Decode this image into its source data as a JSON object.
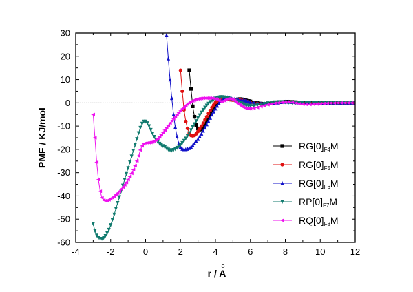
{
  "chart_data": {
    "type": "line",
    "title": "",
    "xlabel": "r / Å",
    "xlabel_base": "r / A",
    "xlabel_ring": "o",
    "ylabel": "PMF / KJ/mol",
    "xlim": [
      -4,
      12
    ],
    "ylim": [
      -60,
      30
    ],
    "xticks": [
      -4,
      -2,
      0,
      2,
      4,
      6,
      8,
      10,
      12
    ],
    "yticks": [
      -60,
      -50,
      -40,
      -30,
      -20,
      -10,
      0,
      10,
      20,
      30
    ],
    "reference_line_y": 0,
    "legend_position": "right",
    "series": [
      {
        "name": "RG[0]F4M",
        "label_base": "RG[0]",
        "label_sub": "F4",
        "label_suffix": "M",
        "color": "#000000",
        "marker": "square",
        "x": [
          2.5,
          2.6,
          2.7,
          2.8,
          2.9,
          3.0,
          3.1,
          3.2,
          3.3,
          3.4,
          3.5,
          3.6,
          3.7,
          3.8,
          3.9,
          4.0,
          4.1,
          4.2,
          4.3,
          4.4,
          4.5,
          4.6,
          4.7,
          4.8,
          4.9,
          5.0,
          5.1,
          5.2,
          5.3,
          5.4,
          5.5,
          5.6,
          5.7,
          5.8,
          5.9,
          6.0,
          6.2,
          6.4,
          6.6,
          6.8,
          7.0,
          7.2,
          7.4,
          7.6,
          7.8,
          8.0,
          8.2,
          8.4,
          8.6,
          8.8,
          9.0,
          9.2,
          9.4,
          9.6,
          9.8,
          10.0,
          10.2,
          10.4,
          10.6,
          10.8,
          11.0,
          11.2,
          11.4,
          11.6,
          11.8,
          12.0
        ],
        "y": [
          14,
          6,
          -1.5,
          -6,
          -9.5,
          -11,
          -11.5,
          -11.3,
          -10.5,
          -9.2,
          -7.8,
          -6.3,
          -4.8,
          -3.4,
          -2,
          -0.8,
          0.1,
          0.9,
          1.4,
          1.8,
          2.0,
          2.0,
          1.8,
          1.6,
          1.4,
          1.3,
          1.3,
          1.4,
          1.5,
          1.6,
          1.5,
          1.4,
          1.2,
          1.0,
          0.8,
          0.6,
          0.2,
          -0.1,
          -0.3,
          -0.4,
          -0.4,
          -0.3,
          -0.1,
          0.1,
          0.3,
          0.5,
          0.5,
          0.4,
          0.3,
          0.2,
          0.1,
          0.05,
          0,
          0,
          0,
          0,
          0,
          0,
          0,
          0,
          0,
          0,
          0,
          0,
          0,
          0
        ]
      },
      {
        "name": "RG[0]F5M",
        "label_base": "RG[0]",
        "label_sub": "F5",
        "label_suffix": "M",
        "color": "#e01010",
        "marker": "circle",
        "x": [
          2.0,
          2.1,
          2.2,
          2.3,
          2.4,
          2.5,
          2.6,
          2.7,
          2.8,
          2.9,
          3.0,
          3.1,
          3.2,
          3.3,
          3.4,
          3.5,
          3.6,
          3.7,
          3.8,
          3.9,
          4.0,
          4.1,
          4.2,
          4.3,
          4.4,
          4.5,
          4.6,
          4.7,
          4.8,
          4.9,
          5.0,
          5.1,
          5.2,
          5.3,
          5.4,
          5.5,
          5.6,
          5.7,
          5.8,
          5.9,
          6.0,
          6.2,
          6.4,
          6.6,
          6.8,
          7.0,
          7.2,
          7.4,
          7.6,
          7.8,
          8.0,
          8.2,
          8.4,
          8.6,
          8.8,
          9.0,
          9.2,
          9.4,
          9.6,
          9.8,
          10.0,
          10.2,
          10.4,
          10.6,
          10.8,
          11.0,
          11.2,
          11.4,
          11.6,
          11.8,
          12.0
        ],
        "y": [
          14,
          5,
          -3,
          -8,
          -11,
          -13,
          -14,
          -14.2,
          -14,
          -13.3,
          -12.3,
          -11.2,
          -10,
          -8.7,
          -7.3,
          -6,
          -4.6,
          -3.3,
          -2,
          -0.9,
          0.1,
          0.8,
          1.3,
          1.7,
          1.9,
          2.0,
          1.9,
          1.7,
          1.5,
          1.3,
          1.2,
          1.2,
          1.2,
          1.2,
          1.2,
          1.1,
          1.0,
          0.8,
          0.6,
          0.4,
          0.2,
          -0.1,
          -0.3,
          -0.4,
          -0.4,
          -0.3,
          -0.2,
          0,
          0.2,
          0.3,
          0.4,
          0.4,
          0.3,
          0.2,
          0.1,
          0.05,
          0,
          0,
          0,
          0,
          0,
          0,
          0,
          0,
          0,
          0,
          0,
          0,
          0,
          0,
          0
        ]
      },
      {
        "name": "RG[0]F6M",
        "label_base": "RG[0]",
        "label_sub": "F6",
        "label_suffix": "M",
        "color": "#1010c8",
        "marker": "triangle-up",
        "x": [
          1.2,
          1.3,
          1.4,
          1.5,
          1.6,
          1.7,
          1.8,
          1.9,
          2.0,
          2.1,
          2.2,
          2.3,
          2.4,
          2.5,
          2.6,
          2.7,
          2.8,
          2.9,
          3.0,
          3.1,
          3.2,
          3.3,
          3.4,
          3.5,
          3.6,
          3.7,
          3.8,
          3.9,
          4.0,
          4.1,
          4.2,
          4.3,
          4.4,
          4.5,
          4.6,
          4.7,
          4.8,
          4.9,
          5.0,
          5.1,
          5.2,
          5.3,
          5.4,
          5.5,
          5.6,
          5.7,
          5.8,
          5.9,
          6.0,
          6.2,
          6.4,
          6.6,
          6.8,
          7.0,
          7.2,
          7.4,
          7.6,
          7.8,
          8.0,
          8.2,
          8.4,
          8.6,
          8.8,
          9.0,
          9.2,
          9.4,
          9.6,
          9.8,
          10.0,
          10.2,
          10.4,
          10.6,
          10.8,
          11.0,
          11.2,
          11.4,
          11.6,
          11.8,
          12.0
        ],
        "y": [
          29,
          19,
          10,
          2,
          -5,
          -10.5,
          -14.5,
          -17.5,
          -19,
          -19.8,
          -20,
          -20,
          -19.8,
          -19.5,
          -19,
          -18.3,
          -17.5,
          -16.6,
          -15.6,
          -14.5,
          -13.3,
          -12,
          -10.7,
          -9.3,
          -7.9,
          -6.5,
          -5.1,
          -3.8,
          -2.5,
          -1.3,
          -0.2,
          0.7,
          1.4,
          1.9,
          2.2,
          2.3,
          2.2,
          2.0,
          1.8,
          1.6,
          1.4,
          1.3,
          1.2,
          1.1,
          1.0,
          0.9,
          0.7,
          0.5,
          0.3,
          0,
          -0.2,
          -0.3,
          -0.3,
          -0.3,
          -0.2,
          -0.1,
          0.1,
          0.3,
          0.4,
          0.4,
          0.3,
          0.2,
          0.1,
          0.05,
          0,
          0,
          0,
          0,
          0,
          0,
          0,
          0,
          0,
          0,
          0,
          0,
          0,
          0,
          0
        ]
      },
      {
        "name": "RP[0]F7M",
        "label_base": "RP[0]",
        "label_sub": "F7",
        "label_suffix": "M",
        "color": "#107a6e",
        "marker": "triangle-down",
        "x": [
          -3.0,
          -2.9,
          -2.8,
          -2.7,
          -2.6,
          -2.5,
          -2.4,
          -2.3,
          -2.2,
          -2.1,
          -2.0,
          -1.9,
          -1.8,
          -1.7,
          -1.6,
          -1.5,
          -1.4,
          -1.3,
          -1.2,
          -1.1,
          -1.0,
          -0.9,
          -0.8,
          -0.7,
          -0.6,
          -0.5,
          -0.4,
          -0.3,
          -0.2,
          -0.1,
          0.0,
          0.1,
          0.2,
          0.3,
          0.4,
          0.5,
          0.6,
          0.7,
          0.8,
          0.9,
          1.0,
          1.1,
          1.2,
          1.3,
          1.4,
          1.5,
          1.6,
          1.7,
          1.8,
          1.9,
          2.0,
          2.1,
          2.2,
          2.3,
          2.4,
          2.5,
          2.6,
          2.7,
          2.8,
          2.9,
          3.0,
          3.1,
          3.2,
          3.3,
          3.4,
          3.5,
          3.6,
          3.7,
          3.8,
          3.9,
          4.0,
          4.1,
          4.2,
          4.3,
          4.4,
          4.5,
          4.6,
          4.7,
          4.8,
          4.9,
          5.0,
          5.1,
          5.2,
          5.3,
          5.4,
          5.5,
          5.6,
          5.7,
          5.8,
          5.9,
          6.0,
          6.2,
          6.4,
          6.6,
          6.8,
          7.0,
          7.2,
          7.4,
          7.6,
          7.8,
          8.0,
          8.2,
          8.4,
          8.6,
          8.8,
          9.0,
          9.2,
          9.4,
          9.6,
          9.8,
          10.0,
          10.2,
          10.4,
          10.6,
          10.8,
          11.0,
          11.2,
          11.4,
          11.6,
          11.8,
          12.0
        ],
        "y": [
          -52,
          -55,
          -57,
          -58,
          -58.4,
          -58.4,
          -58,
          -57.2,
          -56,
          -54.5,
          -52.5,
          -50.3,
          -48,
          -45.5,
          -43,
          -40.5,
          -38,
          -35.5,
          -33,
          -30.5,
          -28,
          -25.5,
          -23,
          -20.5,
          -18,
          -15.5,
          -13,
          -10.7,
          -8.9,
          -8,
          -8,
          -8.7,
          -10,
          -11.6,
          -13.2,
          -14.6,
          -15.8,
          -16.8,
          -17.5,
          -18,
          -18.5,
          -19,
          -19.5,
          -20,
          -20.3,
          -20.4,
          -20.2,
          -19.8,
          -19.3,
          -18.7,
          -18,
          -17.2,
          -16.3,
          -15.3,
          -14.2,
          -13,
          -11.7,
          -10.4,
          -9.1,
          -7.8,
          -6.5,
          -5.3,
          -4.1,
          -3.0,
          -2.0,
          -1.1,
          -0.3,
          0.4,
          1.0,
          1.5,
          1.9,
          2.2,
          2.4,
          2.5,
          2.5,
          2.4,
          2.3,
          2.1,
          1.9,
          1.6,
          1.3,
          1.0,
          0.7,
          0.4,
          0.1,
          -0.2,
          -0.5,
          -0.8,
          -1.0,
          -1.2,
          -1.3,
          -1.2,
          -1.0,
          -0.7,
          -0.4,
          -0.1,
          0.1,
          0.3,
          0.4,
          0.4,
          0.3,
          0.2,
          0.1,
          0,
          0,
          0,
          0,
          0,
          0,
          0,
          0,
          0,
          0,
          0,
          0,
          0,
          0,
          0,
          0,
          0,
          0
        ]
      },
      {
        "name": "RQ[0]F8M",
        "label_base": "RQ[0]",
        "label_sub": "F8",
        "label_suffix": "M",
        "color": "#ee10ee",
        "marker": "triangle-left",
        "x": [
          -3.0,
          -2.9,
          -2.8,
          -2.7,
          -2.6,
          -2.5,
          -2.4,
          -2.3,
          -2.2,
          -2.1,
          -2.0,
          -1.9,
          -1.8,
          -1.7,
          -1.6,
          -1.5,
          -1.4,
          -1.3,
          -1.2,
          -1.1,
          -1.0,
          -0.9,
          -0.8,
          -0.7,
          -0.6,
          -0.5,
          -0.4,
          -0.3,
          -0.2,
          -0.1,
          0.0,
          0.1,
          0.2,
          0.3,
          0.4,
          0.5,
          0.6,
          0.7,
          0.8,
          0.9,
          1.0,
          1.1,
          1.2,
          1.3,
          1.4,
          1.5,
          1.6,
          1.7,
          1.8,
          1.9,
          2.0,
          2.1,
          2.2,
          2.3,
          2.4,
          2.5,
          2.6,
          2.7,
          2.8,
          2.9,
          3.0,
          3.1,
          3.2,
          3.3,
          3.4,
          3.5,
          3.6,
          3.7,
          3.8,
          3.9,
          4.0,
          4.1,
          4.2,
          4.3,
          4.4,
          4.5,
          4.6,
          4.7,
          4.8,
          4.9,
          5.0,
          5.1,
          5.2,
          5.3,
          5.4,
          5.5,
          5.6,
          5.7,
          5.8,
          5.9,
          6.0,
          6.2,
          6.4,
          6.6,
          6.8,
          7.0,
          7.2,
          7.4,
          7.6,
          7.8,
          8.0,
          8.2,
          8.4,
          8.6,
          8.8,
          9.0,
          9.2,
          9.4,
          9.6,
          9.8,
          10.0,
          10.2,
          10.4,
          10.6,
          10.8,
          11.0,
          11.2,
          11.4,
          11.6,
          11.8,
          12.0
        ],
        "y": [
          -5,
          -15,
          -25.5,
          -33,
          -38,
          -40.8,
          -41.8,
          -42,
          -42,
          -41.7,
          -41.3,
          -40.8,
          -40.2,
          -39.5,
          -38.8,
          -38,
          -37.1,
          -36.2,
          -35.2,
          -34.2,
          -33,
          -31.7,
          -30.3,
          -28.7,
          -27,
          -25,
          -22.8,
          -20.3,
          -18.5,
          -17.6,
          -17.3,
          -17.2,
          -17.1,
          -17,
          -16.8,
          -16.5,
          -16,
          -15.4,
          -14.6,
          -13.7,
          -12.7,
          -11.7,
          -10.7,
          -9.7,
          -8.7,
          -7.7,
          -6.8,
          -5.9,
          -5.0,
          -4.2,
          -3.4,
          -2.6,
          -1.9,
          -1.2,
          -0.6,
          0,
          0.5,
          0.9,
          1.2,
          1.5,
          1.7,
          1.8,
          1.9,
          2.0,
          2.0,
          2.0,
          2.0,
          2.0,
          2.0,
          1.9,
          1.7,
          1.4,
          1.0,
          0.6,
          0.6,
          1.0,
          1.4,
          1.7,
          1.8,
          1.7,
          1.4,
          0.9,
          0.3,
          -0.3,
          -0.9,
          -1.4,
          -1.9,
          -2.2,
          -2.4,
          -2.5,
          -2.5,
          -2.3,
          -2.0,
          -1.6,
          -1.2,
          -0.8,
          -0.5,
          -0.2,
          0,
          0.2,
          0.3,
          0.4,
          0.2,
          -0.1,
          -0.4,
          -0.6,
          -0.7,
          -0.7,
          -0.6,
          -0.5,
          -0.4,
          -0.3,
          -0.2,
          -0.1,
          -0.1,
          0,
          0,
          0,
          0,
          0,
          0
        ]
      }
    ]
  }
}
